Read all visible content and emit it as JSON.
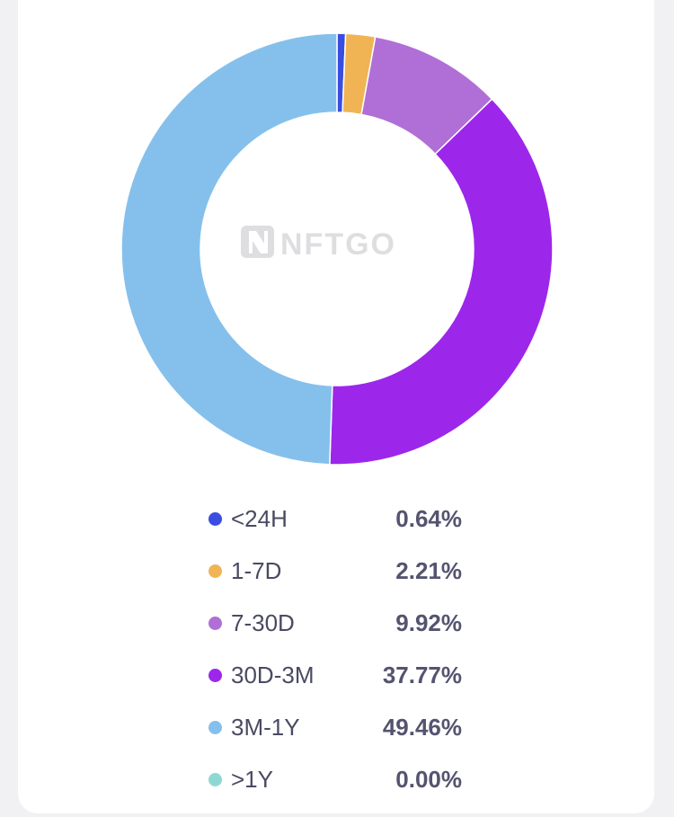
{
  "chart_data": {
    "type": "pie",
    "style": "donut",
    "categories": [
      "<24H",
      "1-7D",
      "7-30D",
      "30D-3M",
      "3M-1Y",
      ">1Y"
    ],
    "values": [
      0.64,
      2.21,
      9.92,
      37.77,
      49.46,
      0.0
    ],
    "value_labels": [
      "0.64%",
      "2.21%",
      "9.92%",
      "37.77%",
      "49.46%",
      "0.00%"
    ],
    "colors": [
      "#3a4de0",
      "#f0b455",
      "#b06fd6",
      "#9c27ea",
      "#85c0ec",
      "#8ed8d4"
    ],
    "watermark": "NFTGO",
    "legend_position": "bottom"
  }
}
